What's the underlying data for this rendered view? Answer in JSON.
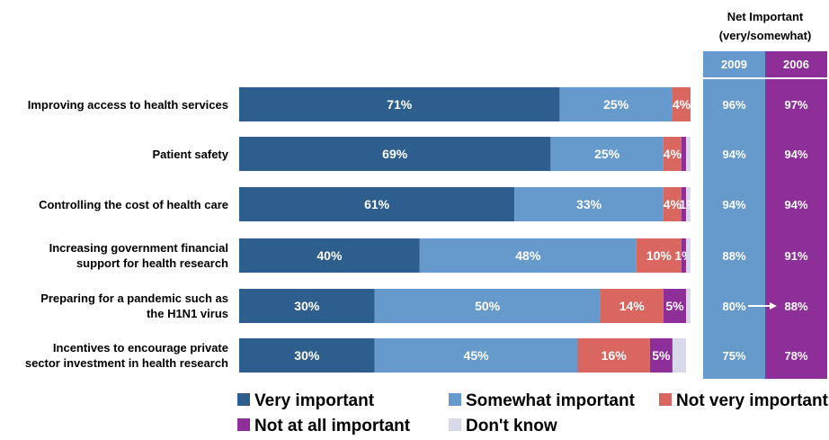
{
  "chart_data": {
    "type": "bar",
    "orientation": "horizontal",
    "stacked": true,
    "categories": [
      [
        "Improving access to health services"
      ],
      [
        "Patient safety"
      ],
      [
        "Controlling the cost of health care"
      ],
      [
        "Increasing government financial",
        "support for health research"
      ],
      [
        "Preparing for a pandemic such as",
        "the H1N1 virus"
      ],
      [
        "Incentives to encourage private",
        "sector investment in health research"
      ]
    ],
    "series": [
      {
        "name": "Very important",
        "color": "#2e5e8e",
        "values": [
          71,
          69,
          61,
          40,
          30,
          30
        ],
        "labels": [
          "71%",
          "69%",
          "61%",
          "40%",
          "30%",
          "30%"
        ]
      },
      {
        "name": "Somewhat important",
        "color": "#6699cc",
        "values": [
          25,
          25,
          33,
          48,
          50,
          45
        ],
        "labels": [
          "25%",
          "25%",
          "33%",
          "48%",
          "50%",
          "45%"
        ]
      },
      {
        "name": "Not very important",
        "color": "#d9675f",
        "values": [
          4,
          4,
          4,
          10,
          14,
          16
        ],
        "labels": [
          "4%",
          "4%",
          "4%",
          "10%",
          "14%",
          "16%"
        ]
      },
      {
        "name": "Not at all important",
        "color": "#8e2e99",
        "values": [
          0,
          1,
          1,
          1,
          5,
          5
        ],
        "labels": [
          "",
          "",
          "",
          "1%",
          "5%",
          "5%"
        ]
      },
      {
        "name": "Don't know",
        "color": "#d9d9ec",
        "values": [
          0,
          1,
          1,
          1,
          1,
          3
        ],
        "labels": [
          "",
          "",
          "1%",
          "",
          "",
          ""
        ]
      }
    ],
    "net_important": {
      "title": [
        "Net Important",
        "(very/somewhat)"
      ],
      "columns": [
        {
          "name": "2009",
          "color": "#6699cc",
          "values": [
            "96%",
            "94%",
            "94%",
            "88%",
            "80%",
            "75%"
          ]
        },
        {
          "name": "2006",
          "color": "#8e2e99",
          "values": [
            "97%",
            "94%",
            "94%",
            "91%",
            "88%",
            "78%"
          ]
        }
      ],
      "arrow_row": 4
    },
    "xlim": [
      0,
      100
    ],
    "legend_position": "bottom"
  }
}
